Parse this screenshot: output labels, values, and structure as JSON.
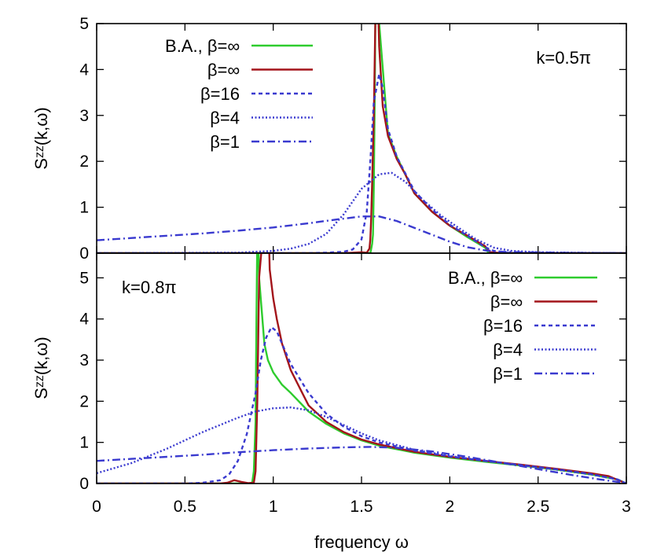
{
  "chart_data": [
    {
      "type": "line",
      "annotation": "k=0.5π",
      "ylabel": "Sᶻᶻ(k,ω)",
      "ylim": [
        0,
        5
      ],
      "yticks": [
        "0",
        "1",
        "2",
        "3",
        "4",
        "5"
      ],
      "xlim": [
        0,
        3
      ],
      "legend_position": "top-left",
      "series": [
        {
          "name": "B.A., β=∞",
          "color": "#2ecc2e",
          "dash": "solid",
          "x": [
            0,
            1.55,
            1.555,
            1.56,
            1.565,
            1.57,
            1.575,
            1.58,
            1.59,
            1.6,
            1.65,
            1.7,
            1.8,
            1.9,
            2.0,
            2.1,
            2.2,
            2.22,
            2.25,
            3.0
          ],
          "y": [
            0,
            0,
            0.1,
            0.2,
            0.4,
            1.5,
            3.5,
            6,
            6,
            5,
            2.6,
            2.1,
            1.3,
            0.9,
            0.6,
            0.35,
            0.12,
            0,
            0,
            0
          ]
        },
        {
          "name": "β=∞",
          "color": "#a3141a",
          "dash": "solid",
          "x": [
            0,
            1.4,
            1.45,
            1.5,
            1.53,
            1.545,
            1.55,
            1.555,
            1.56,
            1.57,
            1.58,
            1.59,
            1.6,
            1.62,
            1.65,
            1.7,
            1.75,
            1.8,
            1.9,
            2.0,
            2.1,
            2.2,
            2.23,
            2.3,
            3.0
          ],
          "y": [
            0,
            0,
            0.01,
            0.02,
            0.01,
            0.1,
            0.3,
            0.8,
            1.5,
            3,
            5.5,
            6,
            4.5,
            3.2,
            2.55,
            2.05,
            1.7,
            1.3,
            0.9,
            0.6,
            0.38,
            0.15,
            0.02,
            0,
            0
          ]
        },
        {
          "name": "β=16",
          "color": "#3a3acf",
          "dash": "5,4",
          "x": [
            0,
            1.2,
            1.3,
            1.4,
            1.45,
            1.5,
            1.53,
            1.55,
            1.57,
            1.6,
            1.62,
            1.65,
            1.7,
            1.8,
            1.9,
            2.0,
            2.1,
            2.2,
            2.25,
            2.3,
            2.5,
            3.0
          ],
          "y": [
            0,
            0,
            0.01,
            0.03,
            0.08,
            0.3,
            0.9,
            2,
            3.3,
            3.9,
            3.6,
            2.7,
            2.1,
            1.35,
            0.95,
            0.62,
            0.38,
            0.13,
            0.05,
            0.01,
            0,
            0
          ]
        },
        {
          "name": "β=4",
          "color": "#3a3acf",
          "dash": "2,2.5",
          "x": [
            0,
            0.8,
            1.0,
            1.1,
            1.2,
            1.3,
            1.4,
            1.5,
            1.6,
            1.67,
            1.75,
            1.85,
            1.95,
            2.05,
            2.15,
            2.25,
            2.35,
            2.5,
            2.7,
            3.0
          ],
          "y": [
            0,
            0.01,
            0.05,
            0.1,
            0.2,
            0.42,
            0.85,
            1.4,
            1.72,
            1.75,
            1.55,
            1.15,
            0.82,
            0.55,
            0.3,
            0.12,
            0.05,
            0.02,
            0.01,
            0
          ]
        },
        {
          "name": "β=1",
          "color": "#3a3acf",
          "dash": "10,4,2,4",
          "x": [
            0,
            0.2,
            0.4,
            0.6,
            0.8,
            1.0,
            1.2,
            1.35,
            1.5,
            1.6,
            1.7,
            1.8,
            1.9,
            2.0,
            2.1,
            2.2,
            2.3,
            2.4,
            2.6,
            2.8,
            3.0
          ],
          "y": [
            0.28,
            0.33,
            0.38,
            0.43,
            0.49,
            0.56,
            0.65,
            0.73,
            0.8,
            0.8,
            0.7,
            0.55,
            0.4,
            0.25,
            0.13,
            0.06,
            0.03,
            0.02,
            0.01,
            0.005,
            0
          ]
        }
      ]
    },
    {
      "type": "line",
      "annotation": "k=0.8π",
      "xlabel": "frequency ω",
      "ylabel": "Sᶻᶻ(k,ω)",
      "ylim": [
        0,
        5.6
      ],
      "yticks": [
        "0",
        "1",
        "2",
        "3",
        "4",
        "5"
      ],
      "xlim": [
        0,
        3
      ],
      "xticks": [
        "0",
        "0.5",
        "1",
        "1.5",
        "2",
        "2.5",
        "3"
      ],
      "legend_position": "top-right",
      "series": [
        {
          "name": "B.A., β=∞",
          "color": "#2ecc2e",
          "dash": "solid",
          "x": [
            0,
            0.88,
            0.89,
            0.9,
            0.905,
            0.91,
            0.915,
            0.92,
            0.95,
            0.97,
            1.0,
            1.05,
            1.1,
            1.2,
            1.3,
            1.4,
            1.5,
            1.6,
            1.8,
            2.0,
            2.2,
            2.4,
            2.6,
            2.8,
            2.95,
            3.0
          ],
          "y": [
            0,
            0,
            0.3,
            1.5,
            4,
            6,
            6,
            5,
            3.4,
            3,
            2.7,
            2.4,
            2.2,
            1.75,
            1.45,
            1.22,
            1.05,
            0.92,
            0.75,
            0.63,
            0.53,
            0.44,
            0.34,
            0.22,
            0.1,
            0
          ]
        },
        {
          "name": "β=∞",
          "color": "#a3141a",
          "dash": "solid",
          "x": [
            0,
            0.7,
            0.74,
            0.78,
            0.82,
            0.86,
            0.89,
            0.9,
            0.91,
            0.92,
            0.94,
            0.96,
            0.975,
            0.98,
            1.0,
            1.02,
            1.05,
            1.1,
            1.2,
            1.3,
            1.4,
            1.5,
            1.6,
            1.8,
            2.0,
            2.2,
            2.4,
            2.6,
            2.8,
            2.9,
            3.0
          ],
          "y": [
            0,
            0,
            0.02,
            0.08,
            0.04,
            0.01,
            0.02,
            0.3,
            2,
            5,
            6,
            6,
            6,
            5.2,
            4.5,
            4.0,
            3.4,
            2.75,
            1.9,
            1.5,
            1.25,
            1.07,
            0.95,
            0.77,
            0.65,
            0.55,
            0.46,
            0.36,
            0.25,
            0.18,
            0
          ]
        },
        {
          "name": "β=16",
          "color": "#3a3acf",
          "dash": "5,4",
          "x": [
            0,
            0.5,
            0.6,
            0.7,
            0.75,
            0.8,
            0.85,
            0.9,
            0.93,
            0.96,
            0.99,
            1.02,
            1.05,
            1.1,
            1.2,
            1.3,
            1.4,
            1.5,
            1.6,
            1.8,
            2.0,
            2.2,
            2.4,
            2.6,
            2.8,
            2.95,
            3.0
          ],
          "y": [
            0,
            0,
            0.02,
            0.08,
            0.22,
            0.55,
            1.2,
            2.2,
            3.0,
            3.55,
            3.8,
            3.7,
            3.4,
            2.9,
            2.2,
            1.7,
            1.38,
            1.15,
            1.0,
            0.8,
            0.66,
            0.55,
            0.45,
            0.35,
            0.23,
            0.1,
            0
          ]
        },
        {
          "name": "β=4",
          "color": "#3a3acf",
          "dash": "2,2.5",
          "x": [
            0,
            0.2,
            0.4,
            0.6,
            0.8,
            0.9,
            1.0,
            1.1,
            1.2,
            1.3,
            1.4,
            1.5,
            1.6,
            1.8,
            2.0,
            2.2,
            2.4,
            2.6,
            2.8,
            2.95,
            3.0
          ],
          "y": [
            0.25,
            0.5,
            0.85,
            1.25,
            1.6,
            1.75,
            1.83,
            1.85,
            1.78,
            1.62,
            1.42,
            1.22,
            1.05,
            0.82,
            0.67,
            0.55,
            0.45,
            0.34,
            0.22,
            0.1,
            0
          ]
        },
        {
          "name": "β=1",
          "color": "#3a3acf",
          "dash": "10,4,2,4",
          "x": [
            0,
            0.2,
            0.4,
            0.6,
            0.8,
            1.0,
            1.2,
            1.4,
            1.55,
            1.7,
            1.9,
            2.1,
            2.3,
            2.5,
            2.7,
            2.85,
            2.95,
            3.0
          ],
          "y": [
            0.55,
            0.6,
            0.65,
            0.7,
            0.76,
            0.81,
            0.85,
            0.88,
            0.89,
            0.87,
            0.78,
            0.65,
            0.5,
            0.35,
            0.2,
            0.1,
            0.04,
            0
          ]
        }
      ]
    }
  ]
}
